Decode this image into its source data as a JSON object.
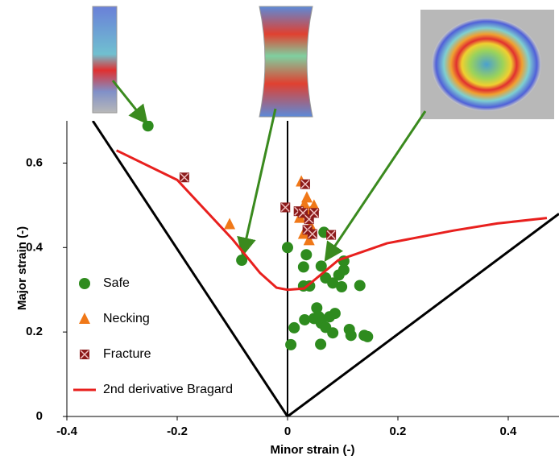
{
  "chart_data": {
    "type": "scatter",
    "x_label": "Minor strain (-)",
    "y_label": "Major strain (-)",
    "xlim": [
      -0.4,
      0.492
    ],
    "ylim": [
      0,
      0.7
    ],
    "xticks": [
      -0.4,
      -0.2,
      0,
      0.2,
      0.4
    ],
    "yticks": [
      0,
      0.2,
      0.4,
      0.6
    ],
    "legend": "lower-left",
    "series": [
      {
        "name": "Safe",
        "marker": "circle",
        "color": "#2e8b1e",
        "x": [
          -0.253,
          -0.083,
          0,
          0.006,
          0.012,
          0.029,
          0.034,
          0.029,
          0.04,
          0.031,
          0.048,
          0.053,
          0.057,
          0.061,
          0.06,
          0.061,
          0.069,
          0.069,
          0.076,
          0.086,
          0.082,
          0.082,
          0.093,
          0.098,
          0.102,
          0.102,
          0.112,
          0.115,
          0.131,
          0.139,
          0.145,
          0.066
        ],
        "y": [
          0.688,
          0.37,
          0.4,
          0.17,
          0.21,
          0.354,
          0.383,
          0.309,
          0.309,
          0.229,
          0.232,
          0.257,
          0.236,
          0.221,
          0.171,
          0.356,
          0.211,
          0.328,
          0.236,
          0.244,
          0.316,
          0.198,
          0.335,
          0.307,
          0.368,
          0.347,
          0.206,
          0.192,
          0.31,
          0.192,
          0.189,
          0.436
        ]
      },
      {
        "name": "Necking",
        "marker": "triangle",
        "color": "#f07818",
        "x": [
          -0.105,
          0.025,
          0.031,
          0.041,
          0.048,
          0.034,
          0.029,
          0.039,
          0.042,
          0.022,
          0.035
        ],
        "y": [
          0.455,
          0.556,
          0.503,
          0.484,
          0.499,
          0.48,
          0.432,
          0.417,
          0.451,
          0.47,
          0.518
        ]
      },
      {
        "name": "Fracture",
        "marker": "cross-square",
        "color": "#8b1a1a",
        "x": [
          -0.187,
          -0.004,
          0.032,
          0.02,
          0.028,
          0.039,
          0.036,
          0.048,
          0.079,
          0.045
        ],
        "y": [
          0.566,
          0.495,
          0.55,
          0.486,
          0.482,
          0.467,
          0.442,
          0.482,
          0.43,
          0.432
        ]
      },
      {
        "name": "2nd derivative Bragard",
        "marker": "line",
        "color": "#e8201e",
        "x": [
          -0.31,
          -0.2,
          -0.1,
          -0.05,
          -0.02,
          0,
          0.03,
          0.092,
          0.18,
          0.3,
          0.38,
          0.47
        ],
        "y": [
          0.63,
          0.56,
          0.42,
          0.34,
          0.305,
          0.3,
          0.303,
          0.37,
          0.41,
          0.44,
          0.457,
          0.47
        ]
      }
    ],
    "reference_lines": [
      {
        "color": "#000000",
        "x": [
          -0.353,
          0,
          0.492
        ],
        "y": [
          0.7,
          0,
          0.48
        ]
      }
    ]
  }
}
